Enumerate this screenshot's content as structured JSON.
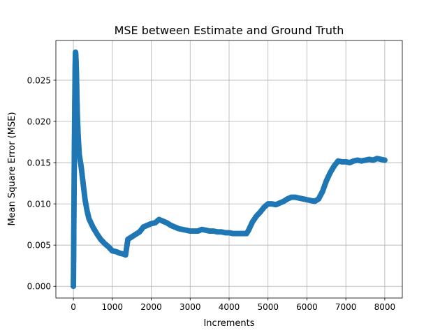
{
  "chart_data": {
    "type": "line",
    "title": "MSE between Estimate and Ground Truth",
    "xlabel": "Increments",
    "ylabel": "Mean Square Error (MSE)",
    "xlim": [
      -450,
      8450
    ],
    "ylim": [
      -0.00142,
      0.02982
    ],
    "x_ticks": [
      0,
      1000,
      2000,
      3000,
      4000,
      5000,
      6000,
      7000,
      8000
    ],
    "x_tick_labels": [
      "0",
      "1000",
      "2000",
      "3000",
      "4000",
      "5000",
      "6000",
      "7000",
      "8000"
    ],
    "y_ticks": [
      0.0,
      0.005,
      0.01,
      0.015,
      0.02,
      0.025
    ],
    "y_tick_labels": [
      "0.000",
      "0.005",
      "0.010",
      "0.015",
      "0.020",
      "0.025"
    ],
    "grid": true,
    "marker": "circle",
    "series": [
      {
        "color": "#1f77b4",
        "points": [
          [
            0,
            0.0
          ],
          [
            2,
            0.001
          ],
          [
            5,
            0.003
          ],
          [
            8,
            0.005
          ],
          [
            11,
            0.007
          ],
          [
            14,
            0.009
          ],
          [
            17,
            0.011
          ],
          [
            20,
            0.013
          ],
          [
            23,
            0.015
          ],
          [
            26,
            0.017
          ],
          [
            30,
            0.019
          ],
          [
            35,
            0.0215
          ],
          [
            40,
            0.024
          ],
          [
            45,
            0.0265
          ],
          [
            50,
            0.0278
          ],
          [
            55,
            0.0284
          ],
          [
            60,
            0.0282
          ],
          [
            70,
            0.0272
          ],
          [
            80,
            0.0255
          ],
          [
            90,
            0.023
          ],
          [
            100,
            0.021
          ],
          [
            120,
            0.0185
          ],
          [
            150,
            0.016
          ],
          [
            200,
            0.0145
          ],
          [
            250,
            0.0125
          ],
          [
            300,
            0.0105
          ],
          [
            350,
            0.0092
          ],
          [
            400,
            0.0082
          ],
          [
            500,
            0.0072
          ],
          [
            600,
            0.0064
          ],
          [
            700,
            0.0057
          ],
          [
            800,
            0.0052
          ],
          [
            900,
            0.0048
          ],
          [
            1000,
            0.0043
          ],
          [
            1100,
            0.0042
          ],
          [
            1200,
            0.004
          ],
          [
            1300,
            0.0039
          ],
          [
            1340,
            0.0038
          ],
          [
            1400,
            0.0057
          ],
          [
            1500,
            0.006
          ],
          [
            1600,
            0.0063
          ],
          [
            1700,
            0.0066
          ],
          [
            1800,
            0.0072
          ],
          [
            1900,
            0.0074
          ],
          [
            2000,
            0.0076
          ],
          [
            2100,
            0.0077
          ],
          [
            2200,
            0.0081
          ],
          [
            2300,
            0.0079
          ],
          [
            2400,
            0.0077
          ],
          [
            2500,
            0.0074
          ],
          [
            2600,
            0.0072
          ],
          [
            2700,
            0.007
          ],
          [
            2800,
            0.0069
          ],
          [
            2900,
            0.0068
          ],
          [
            3000,
            0.0067
          ],
          [
            3100,
            0.0067
          ],
          [
            3200,
            0.0067
          ],
          [
            3300,
            0.0069
          ],
          [
            3400,
            0.0068
          ],
          [
            3500,
            0.0067
          ],
          [
            3600,
            0.0067
          ],
          [
            3700,
            0.0066
          ],
          [
            3800,
            0.0066
          ],
          [
            3900,
            0.0065
          ],
          [
            4000,
            0.0065
          ],
          [
            4100,
            0.0064
          ],
          [
            4200,
            0.0064
          ],
          [
            4300,
            0.0064
          ],
          [
            4400,
            0.0064
          ],
          [
            4450,
            0.0064
          ],
          [
            4500,
            0.0068
          ],
          [
            4600,
            0.0078
          ],
          [
            4700,
            0.0085
          ],
          [
            4800,
            0.009
          ],
          [
            4900,
            0.0096
          ],
          [
            5000,
            0.01
          ],
          [
            5100,
            0.01
          ],
          [
            5200,
            0.0099
          ],
          [
            5300,
            0.0101
          ],
          [
            5400,
            0.0103
          ],
          [
            5500,
            0.0106
          ],
          [
            5600,
            0.0108
          ],
          [
            5700,
            0.0108
          ],
          [
            5800,
            0.0107
          ],
          [
            5900,
            0.0106
          ],
          [
            6000,
            0.0105
          ],
          [
            6100,
            0.0104
          ],
          [
            6200,
            0.0103
          ],
          [
            6300,
            0.0106
          ],
          [
            6400,
            0.0115
          ],
          [
            6500,
            0.0128
          ],
          [
            6600,
            0.0138
          ],
          [
            6700,
            0.0146
          ],
          [
            6800,
            0.0152
          ],
          [
            6900,
            0.0151
          ],
          [
            7000,
            0.0151
          ],
          [
            7100,
            0.015
          ],
          [
            7200,
            0.0152
          ],
          [
            7300,
            0.0153
          ],
          [
            7400,
            0.0152
          ],
          [
            7500,
            0.0153
          ],
          [
            7600,
            0.0154
          ],
          [
            7700,
            0.0153
          ],
          [
            7800,
            0.0155
          ],
          [
            7900,
            0.0154
          ],
          [
            8000,
            0.0153
          ]
        ]
      }
    ]
  }
}
